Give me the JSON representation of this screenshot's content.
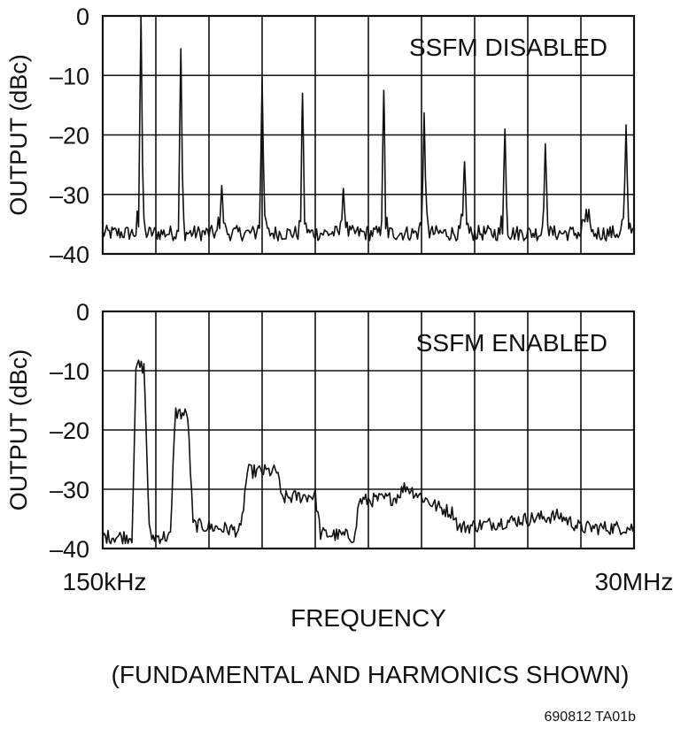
{
  "figure_id": "690812 TA01b",
  "xlabel": "FREQUENCY",
  "caption": "(FUNDAMENTAL AND HARMONICS SHOWN)",
  "x_start_label": "150kHz",
  "x_end_label": "30MHz",
  "colors": {
    "trace": "#111111",
    "grid": "#111111",
    "background": "#ffffff"
  },
  "chart_data": [
    {
      "type": "line",
      "title": "SSFM DISABLED",
      "ylabel": "OUTPUT (dBc)",
      "ylim": [
        -40,
        0
      ],
      "yticks": [
        "0",
        "–10",
        "–20",
        "–30",
        "–40"
      ],
      "xscale": "log",
      "xlim_labels": [
        "150kHz",
        "30MHz"
      ],
      "grid": true,
      "noise_floor": -36.5,
      "peaks": [
        {
          "x": 0.072,
          "y": 0
        },
        {
          "x": 0.147,
          "y": -5.5
        },
        {
          "x": 0.224,
          "y": -28.5
        },
        {
          "x": 0.3,
          "y": -10.5
        },
        {
          "x": 0.376,
          "y": -13
        },
        {
          "x": 0.453,
          "y": -29
        },
        {
          "x": 0.529,
          "y": -12.5
        },
        {
          "x": 0.605,
          "y": -16.5
        },
        {
          "x": 0.681,
          "y": -24.5
        },
        {
          "x": 0.757,
          "y": -19
        },
        {
          "x": 0.833,
          "y": -21.5
        },
        {
          "x": 0.91,
          "y": -32.5
        },
        {
          "x": 0.985,
          "y": -18.5
        }
      ]
    },
    {
      "type": "line",
      "title": "SSFM ENABLED",
      "ylabel": "OUTPUT (dBc)",
      "ylim": [
        -40,
        0
      ],
      "yticks": [
        "0",
        "–10",
        "–20",
        "–30",
        "–40"
      ],
      "xscale": "log",
      "xlim_labels": [
        "150kHz",
        "30MHz"
      ],
      "grid": true,
      "envelope": [
        {
          "x": 0.0,
          "y": -38
        },
        {
          "x": 0.055,
          "y": -38
        },
        {
          "x": 0.063,
          "y": -9
        },
        {
          "x": 0.078,
          "y": -9.5
        },
        {
          "x": 0.088,
          "y": -38
        },
        {
          "x": 0.128,
          "y": -38
        },
        {
          "x": 0.136,
          "y": -17
        },
        {
          "x": 0.16,
          "y": -17.5
        },
        {
          "x": 0.17,
          "y": -36
        },
        {
          "x": 0.26,
          "y": -37
        },
        {
          "x": 0.272,
          "y": -27
        },
        {
          "x": 0.33,
          "y": -27
        },
        {
          "x": 0.335,
          "y": -31.5
        },
        {
          "x": 0.4,
          "y": -31
        },
        {
          "x": 0.41,
          "y": -37.5
        },
        {
          "x": 0.475,
          "y": -38
        },
        {
          "x": 0.482,
          "y": -32
        },
        {
          "x": 0.55,
          "y": -31.5
        },
        {
          "x": 0.57,
          "y": -29.5
        },
        {
          "x": 0.63,
          "y": -33
        },
        {
          "x": 0.66,
          "y": -34
        },
        {
          "x": 0.67,
          "y": -36.5
        },
        {
          "x": 0.8,
          "y": -35
        },
        {
          "x": 0.86,
          "y": -34.5
        },
        {
          "x": 0.9,
          "y": -36.5
        },
        {
          "x": 1.0,
          "y": -36.5
        }
      ]
    }
  ]
}
